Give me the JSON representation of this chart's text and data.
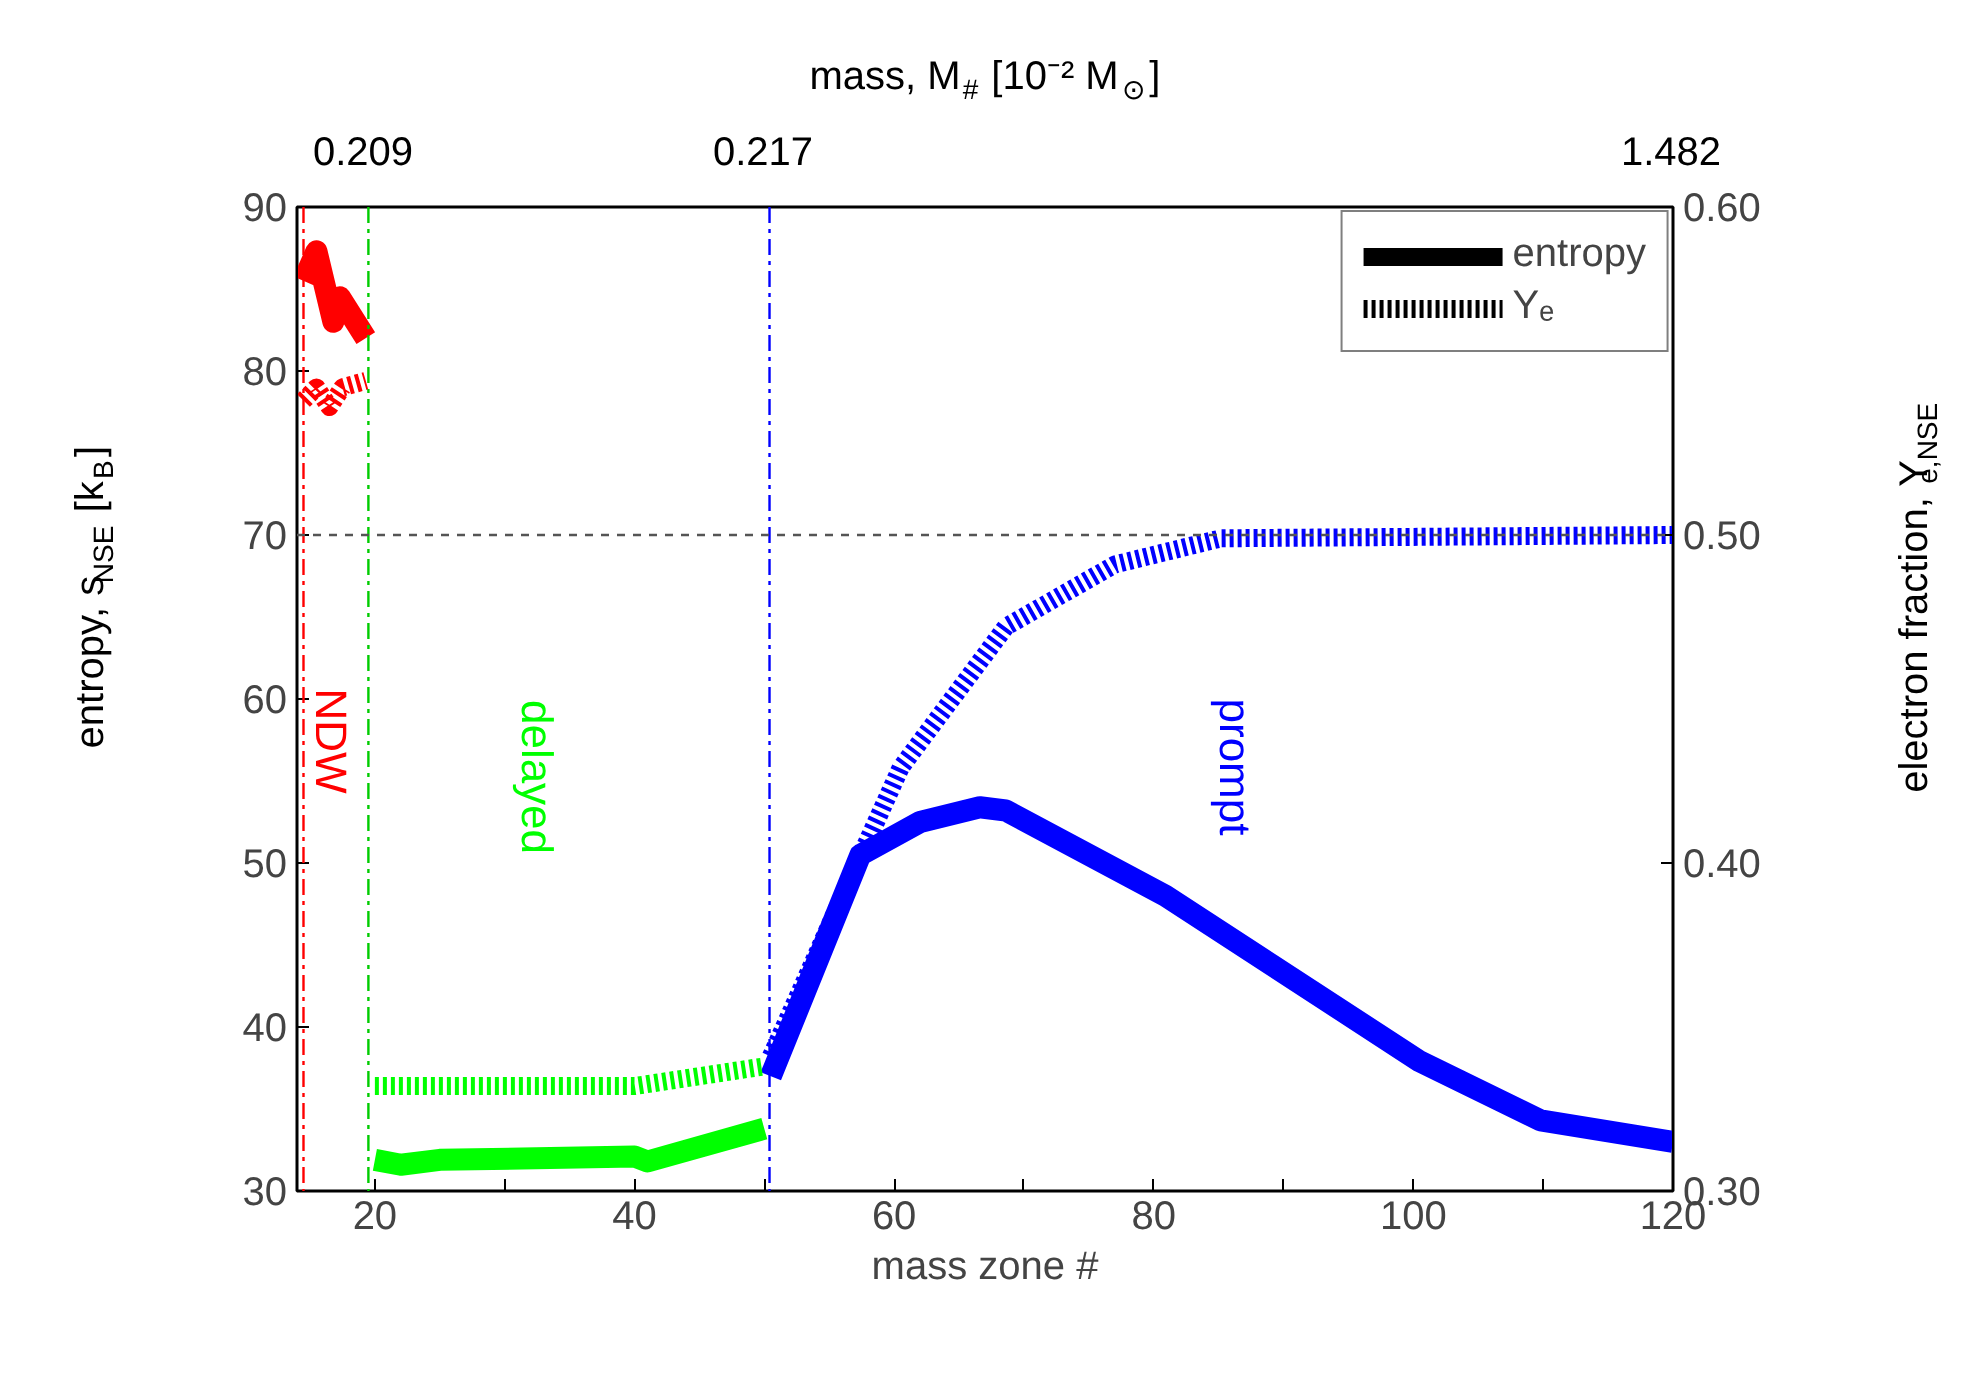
{
  "chart_data": {
    "type": "line",
    "xlabel": "mass zone #",
    "ylabel": "entropy, s$_{NSE}$ [k$_{B}$]",
    "y2label": "electron fraction, Y$_{e,NSE}$",
    "x2label": "mass, M$_{#}$ [10⁻² M$_{⊙}$]",
    "xlim": [
      14,
      120
    ],
    "ylim": [
      30,
      90
    ],
    "y2lim": [
      0.3,
      0.6
    ],
    "xticks": [
      20,
      {
        "value": 30,
        "label": null
      },
      40,
      {
        "value": 50,
        "label": null
      },
      60,
      {
        "value": 70,
        "label": null
      },
      80,
      {
        "value": 90,
        "label": null
      },
      100,
      {
        "value": 110,
        "label": null
      },
      120
    ],
    "yticks": [
      30,
      40,
      50,
      60,
      70,
      80,
      90
    ],
    "y2ticks": [
      {
        "value": 0.3,
        "label": "0.30"
      },
      {
        "value": 0.4,
        "label": "0.40"
      },
      {
        "value": 0.5,
        "label": "0.50"
      },
      {
        "value": 0.6,
        "label": "0.60"
      }
    ],
    "series": [
      {
        "name": "entropy",
        "color": "#ff0000",
        "line_style": "solid",
        "x": [
          14.5,
          15.5,
          16.8,
          17.3,
          19.3
        ],
        "values": [
          85.5,
          87.3,
          83,
          84.5,
          82
        ]
      },
      {
        "color": "#00ff00",
        "line_style": "solid",
        "x": [
          20,
          22,
          25,
          40,
          41,
          50
        ],
        "values": [
          31.9,
          31.6,
          31.9,
          32.1,
          31.8,
          33.8
        ]
      },
      {
        "color": "#0000ff",
        "line_style": "solid",
        "x": [
          50.5,
          57.4,
          62,
          66.6,
          68.6,
          80.9,
          100.5,
          109.8,
          120
        ],
        "values": [
          37,
          50.5,
          52.5,
          53.4,
          53.2,
          48.0,
          37.9,
          34.3,
          33.0
        ]
      },
      {
        "name": "Yₑ",
        "color": "#ff0000",
        "line_style": "dotted",
        "axis": "y2",
        "x": [
          14.5,
          15.5,
          16.5,
          17.5,
          19.3
        ],
        "values": [
          0.541,
          0.545,
          0.539,
          0.545,
          0.547
        ]
      },
      {
        "color": "#00ff00",
        "line_style": "dotted",
        "axis": "y2",
        "x": [
          20,
          40,
          50
        ],
        "values": [
          0.332,
          0.332,
          0.338
        ]
      },
      {
        "color": "#0000ff",
        "line_style": "dotted",
        "axis": "y2",
        "x": [
          50.5,
          57.4,
          60.5,
          68.6,
          77,
          85.2,
          120
        ],
        "values": [
          0.341,
          0.402,
          0.429,
          0.472,
          0.491,
          0.499,
          0.5
        ]
      }
    ],
    "ref_lines": [
      {
        "axis": "x",
        "value": 14.5,
        "color": "#ff0000",
        "line_style": "dashdot"
      },
      {
        "axis": "x",
        "value": 19.5,
        "color": "#00cc00",
        "line_style": "dashdot"
      },
      {
        "axis": "x",
        "value": 50.4,
        "color": "#0000ff",
        "line_style": "dashdot"
      },
      {
        "axis": "y",
        "value": 70,
        "color": "#555555",
        "line_style": "dashed"
      }
    ],
    "annotations": [
      "NDW",
      "delayed",
      "prompt",
      "0.209",
      "0.217",
      "1.482"
    ],
    "legend": "top right",
    "grid": false
  }
}
